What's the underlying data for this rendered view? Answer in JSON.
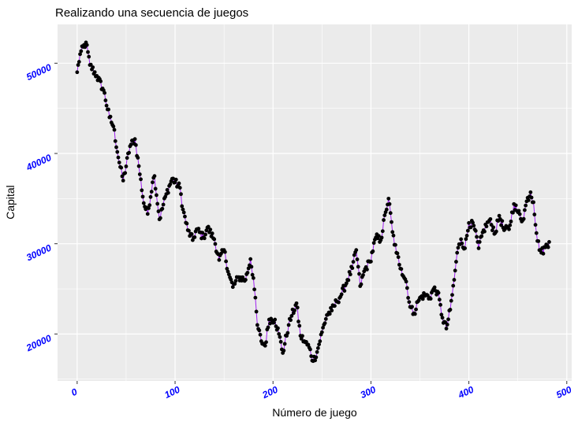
{
  "chart_data": {
    "type": "line",
    "title": "Realizando una secuencia de juegos",
    "xlabel": "Número de juego",
    "ylabel": "Capital",
    "xlim": [
      -20,
      505
    ],
    "ylim": [
      14800,
      54300
    ],
    "xticks": [
      0,
      100,
      200,
      300,
      400,
      500
    ],
    "yticks": [
      20000,
      30000,
      40000,
      50000
    ],
    "grid": true,
    "legend": "none",
    "colors": {
      "panel_background": "#ebebeb",
      "grid": "#ffffff",
      "line": "#a020f0",
      "points": "#000000",
      "tick_labels": "#0000ff"
    },
    "series": [
      {
        "markers": true,
        "knots": [
          [
            0,
            49000
          ],
          [
            3,
            51000
          ],
          [
            9,
            52300
          ],
          [
            13,
            49800
          ],
          [
            20,
            48600
          ],
          [
            27,
            47000
          ],
          [
            33,
            44000
          ],
          [
            37,
            43000
          ],
          [
            43,
            39000
          ],
          [
            47,
            37000
          ],
          [
            54,
            40800
          ],
          [
            59,
            41600
          ],
          [
            63,
            38600
          ],
          [
            68,
            34500
          ],
          [
            72,
            33300
          ],
          [
            77,
            36800
          ],
          [
            79,
            37500
          ],
          [
            84,
            32700
          ],
          [
            91,
            35500
          ],
          [
            97,
            37200
          ],
          [
            105,
            36200
          ],
          [
            108,
            33800
          ],
          [
            113,
            31500
          ],
          [
            118,
            30400
          ],
          [
            122,
            31600
          ],
          [
            129,
            30700
          ],
          [
            133,
            31800
          ],
          [
            140,
            30500
          ],
          [
            145,
            28200
          ],
          [
            150,
            29300
          ],
          [
            155,
            26600
          ],
          [
            159,
            25200
          ],
          [
            165,
            26300
          ],
          [
            172,
            26000
          ],
          [
            177,
            28300
          ],
          [
            180,
            26200
          ],
          [
            184,
            21000
          ],
          [
            188,
            19200
          ],
          [
            192,
            18700
          ],
          [
            196,
            21600
          ],
          [
            202,
            21600
          ],
          [
            206,
            20000
          ],
          [
            210,
            17900
          ],
          [
            216,
            21000
          ],
          [
            219,
            22000
          ],
          [
            224,
            23400
          ],
          [
            228,
            19800
          ],
          [
            232,
            19200
          ],
          [
            237,
            18500
          ],
          [
            241,
            17000
          ],
          [
            245,
            18000
          ],
          [
            250,
            20200
          ],
          [
            255,
            22100
          ],
          [
            260,
            22600
          ],
          [
            265,
            23600
          ],
          [
            270,
            24400
          ],
          [
            276,
            26000
          ],
          [
            281,
            27300
          ],
          [
            285,
            29300
          ],
          [
            289,
            25300
          ],
          [
            294,
            27200
          ],
          [
            299,
            28000
          ],
          [
            305,
            30700
          ],
          [
            310,
            30400
          ],
          [
            315,
            33500
          ],
          [
            318,
            35000
          ],
          [
            322,
            31300
          ],
          [
            326,
            29000
          ],
          [
            331,
            27200
          ],
          [
            336,
            25800
          ],
          [
            340,
            23000
          ],
          [
            344,
            22300
          ],
          [
            348,
            23600
          ],
          [
            352,
            24200
          ],
          [
            356,
            24300
          ],
          [
            360,
            24000
          ],
          [
            364,
            25000
          ],
          [
            368,
            24700
          ],
          [
            373,
            21800
          ],
          [
            377,
            20600
          ],
          [
            381,
            22700
          ],
          [
            385,
            26000
          ],
          [
            388,
            29000
          ],
          [
            392,
            30500
          ],
          [
            396,
            29500
          ],
          [
            400,
            32300
          ],
          [
            405,
            32000
          ],
          [
            410,
            29500
          ],
          [
            415,
            31500
          ],
          [
            421,
            32600
          ],
          [
            427,
            31200
          ],
          [
            431,
            33100
          ],
          [
            436,
            31500
          ],
          [
            441,
            31600
          ],
          [
            446,
            34400
          ],
          [
            450,
            33500
          ],
          [
            455,
            32600
          ],
          [
            459,
            34700
          ],
          [
            463,
            35700
          ],
          [
            466,
            34600
          ],
          [
            470,
            30300
          ],
          [
            474,
            29000
          ],
          [
            478,
            29600
          ],
          [
            482,
            30200
          ]
        ]
      }
    ]
  }
}
